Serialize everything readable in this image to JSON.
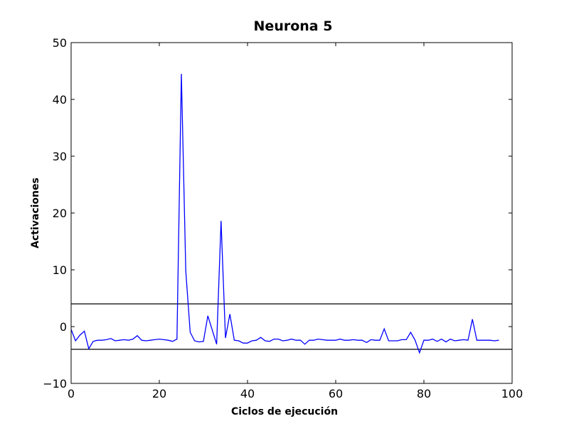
{
  "chart_data": {
    "type": "line",
    "title": "Neurona 5",
    "xlabel": "Ciclos de ejecución",
    "ylabel": "Activaciones",
    "xlim": [
      0,
      100
    ],
    "ylim": [
      -10,
      50
    ],
    "xticks": [
      0,
      20,
      40,
      60,
      80,
      100
    ],
    "yticks": [
      -10,
      0,
      10,
      20,
      30,
      40,
      50
    ],
    "xtick_labels": [
      "0",
      "20",
      "40",
      "60",
      "80",
      "100"
    ],
    "ytick_labels": [
      "−10",
      "0",
      "10",
      "20",
      "30",
      "40",
      "50"
    ],
    "grid": false,
    "series": [
      {
        "color": "#0000ff",
        "x": [
          0,
          1,
          2,
          3,
          4,
          5,
          6,
          7,
          8,
          9,
          10,
          11,
          12,
          13,
          14,
          15,
          16,
          17,
          18,
          19,
          20,
          21,
          22,
          23,
          24,
          25,
          26,
          27,
          28,
          29,
          30,
          31,
          32,
          33,
          34,
          35,
          36,
          37,
          38,
          39,
          40,
          41,
          42,
          43,
          44,
          45,
          46,
          47,
          48,
          49,
          50,
          51,
          52,
          53,
          54,
          55,
          56,
          57,
          58,
          59,
          60,
          61,
          62,
          63,
          64,
          65,
          66,
          67,
          68,
          69,
          70,
          71,
          72,
          73,
          74,
          75,
          76,
          77,
          78,
          79,
          80,
          81,
          82,
          83,
          84,
          85,
          86,
          87,
          88,
          89,
          90,
          91,
          92,
          93,
          94,
          95,
          96,
          97
        ],
        "values": [
          -0.5,
          -2.5,
          -1.5,
          -0.8,
          -3.9,
          -2.6,
          -2.4,
          -2.4,
          -2.3,
          -2.1,
          -2.5,
          -2.4,
          -2.3,
          -2.4,
          -2.2,
          -1.6,
          -2.4,
          -2.5,
          -2.4,
          -2.3,
          -2.2,
          -2.3,
          -2.4,
          -2.6,
          -2.2,
          44.5,
          9.8,
          -1.0,
          -2.5,
          -2.7,
          -2.6,
          1.9,
          -0.6,
          -3.1,
          18.6,
          -2.0,
          2.2,
          -2.4,
          -2.5,
          -2.9,
          -2.9,
          -2.5,
          -2.4,
          -1.9,
          -2.5,
          -2.6,
          -2.2,
          -2.2,
          -2.5,
          -2.4,
          -2.2,
          -2.4,
          -2.4,
          -3.1,
          -2.4,
          -2.4,
          -2.2,
          -2.3,
          -2.4,
          -2.4,
          -2.4,
          -2.2,
          -2.4,
          -2.4,
          -2.3,
          -2.4,
          -2.4,
          -2.8,
          -2.3,
          -2.4,
          -2.4,
          -0.4,
          -2.5,
          -2.5,
          -2.5,
          -2.3,
          -2.3,
          -1.0,
          -2.4,
          -4.6,
          -2.4,
          -2.4,
          -2.2,
          -2.6,
          -2.2,
          -2.7,
          -2.2,
          -2.5,
          -2.4,
          -2.3,
          -2.4,
          1.3,
          -2.4,
          -2.4,
          -2.4,
          -2.4,
          -2.5,
          -2.4
        ]
      }
    ],
    "hlines": [
      4,
      -4
    ],
    "hline_color": "#000000"
  }
}
